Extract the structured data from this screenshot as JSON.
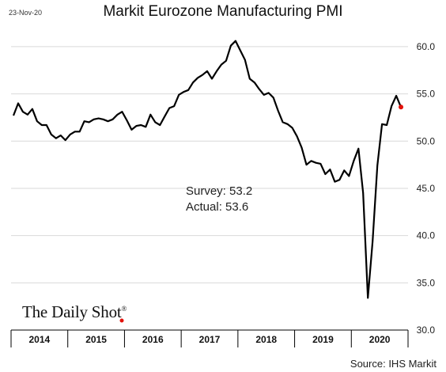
{
  "header": {
    "date": "23-Nov-20",
    "title": "Markit Eurozone Manufacturing PMI"
  },
  "annotation": {
    "survey": "Survey: 53.2",
    "actual": "Actual:  53.6"
  },
  "branding": {
    "logo_text": "The Daily Shot",
    "reg_mark": "®"
  },
  "source": "Source: IHS Markit",
  "chart_data": {
    "type": "line",
    "title": "Markit Eurozone Manufacturing PMI",
    "xlabel": "",
    "ylabel": "",
    "ylim": [
      30,
      62
    ],
    "yticks": [
      30.0,
      35.0,
      40.0,
      45.0,
      50.0,
      55.0,
      60.0
    ],
    "ytick_labels": [
      "30.0",
      "35.0",
      "40.0",
      "45.0",
      "50.0",
      "55.0",
      "60.0"
    ],
    "grid": true,
    "year_labels": [
      "2014",
      "2015",
      "2016",
      "2017",
      "2018",
      "2019",
      "2020"
    ],
    "x_start": "2014-01",
    "x_end": "2020-12",
    "line_color": "#000000",
    "marker_color": "#e3120b",
    "series": [
      {
        "x": [
          "2014-01",
          "2014-02",
          "2014-03",
          "2014-04",
          "2014-05",
          "2014-06",
          "2014-07",
          "2014-08",
          "2014-09",
          "2014-10",
          "2014-11",
          "2014-12",
          "2015-01",
          "2015-02",
          "2015-03",
          "2015-04",
          "2015-05",
          "2015-06",
          "2015-07",
          "2015-08",
          "2015-09",
          "2015-10",
          "2015-11",
          "2015-12",
          "2016-01",
          "2016-02",
          "2016-03",
          "2016-04",
          "2016-05",
          "2016-06",
          "2016-07",
          "2016-08",
          "2016-09",
          "2016-10",
          "2016-11",
          "2016-12",
          "2017-01",
          "2017-02",
          "2017-03",
          "2017-04",
          "2017-05",
          "2017-06",
          "2017-07",
          "2017-08",
          "2017-09",
          "2017-10",
          "2017-11",
          "2017-12",
          "2018-01",
          "2018-02",
          "2018-03",
          "2018-04",
          "2018-05",
          "2018-06",
          "2018-07",
          "2018-08",
          "2018-09",
          "2018-10",
          "2018-11",
          "2018-12",
          "2019-01",
          "2019-02",
          "2019-03",
          "2019-04",
          "2019-05",
          "2019-06",
          "2019-07",
          "2019-08",
          "2019-09",
          "2019-10",
          "2019-11",
          "2019-12",
          "2020-01",
          "2020-02",
          "2020-03",
          "2020-04",
          "2020-05",
          "2020-06",
          "2020-07",
          "2020-08",
          "2020-09",
          "2020-10",
          "2020-11"
        ],
        "values": [
          52.7,
          54.0,
          53.1,
          52.8,
          53.4,
          52.1,
          51.7,
          51.7,
          50.7,
          50.3,
          50.6,
          50.1,
          50.7,
          51.0,
          51.0,
          52.1,
          52.0,
          52.3,
          52.4,
          52.3,
          52.1,
          52.3,
          52.8,
          53.1,
          52.2,
          51.2,
          51.6,
          51.7,
          51.5,
          52.8,
          52.0,
          51.7,
          52.6,
          53.5,
          53.7,
          54.9,
          55.2,
          55.4,
          56.2,
          56.7,
          57.0,
          57.4,
          56.6,
          57.4,
          58.1,
          58.5,
          60.1,
          60.6,
          59.6,
          58.6,
          56.6,
          56.2,
          55.5,
          54.9,
          55.1,
          54.6,
          53.2,
          52.0,
          51.8,
          51.4,
          50.5,
          49.3,
          47.5,
          47.9,
          47.7,
          47.6,
          46.5,
          47.0,
          45.7,
          45.9,
          46.9,
          46.3,
          47.9,
          49.2,
          44.5,
          33.4,
          39.4,
          47.4,
          51.8,
          51.7,
          53.7,
          54.8,
          53.6
        ]
      }
    ],
    "latest_marker": {
      "x": "2020-11",
      "value": 53.6
    }
  }
}
